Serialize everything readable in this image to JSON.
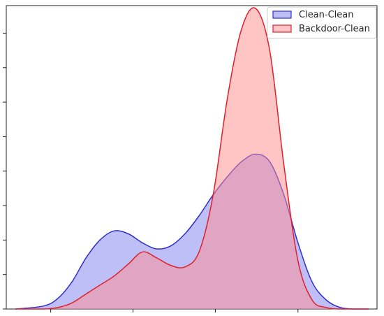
{
  "chart_data": {
    "type": "area",
    "title": "",
    "xlabel": "",
    "ylabel": "",
    "grid": false,
    "legend_position": "top-right",
    "xlim": [
      0,
      1
    ],
    "ylim": [
      0,
      1
    ],
    "series": [
      {
        "name": "Clean-Clean",
        "line_color": "#2f2fd0",
        "fill_color": "#7f7ff2",
        "x": [
          0.0,
          0.08,
          0.12,
          0.16,
          0.2,
          0.24,
          0.28,
          0.32,
          0.36,
          0.4,
          0.44,
          0.48,
          0.52,
          0.56,
          0.6,
          0.64,
          0.68,
          0.72,
          0.76,
          0.8,
          0.84,
          0.88,
          0.92,
          0.96,
          1.0
        ],
        "values": [
          0.0,
          0.01,
          0.035,
          0.09,
          0.17,
          0.23,
          0.26,
          0.25,
          0.22,
          0.2,
          0.21,
          0.25,
          0.31,
          0.38,
          0.44,
          0.49,
          0.515,
          0.49,
          0.38,
          0.22,
          0.09,
          0.03,
          0.005,
          0.0,
          0.0
        ]
      },
      {
        "name": "Backdoor-Clean",
        "line_color": "#e0202a",
        "fill_color": "#ff8c8c",
        "x": [
          0.0,
          0.08,
          0.12,
          0.16,
          0.2,
          0.24,
          0.28,
          0.32,
          0.36,
          0.4,
          0.44,
          0.48,
          0.52,
          0.56,
          0.6,
          0.64,
          0.68,
          0.72,
          0.76,
          0.8,
          0.84,
          0.88,
          0.92,
          0.96,
          1.0
        ],
        "values": [
          0.0,
          0.0,
          0.005,
          0.02,
          0.05,
          0.08,
          0.11,
          0.15,
          0.19,
          0.17,
          0.145,
          0.14,
          0.19,
          0.38,
          0.7,
          0.93,
          1.0,
          0.86,
          0.48,
          0.16,
          0.03,
          0.005,
          0.0,
          0.0,
          0.0
        ]
      }
    ]
  }
}
